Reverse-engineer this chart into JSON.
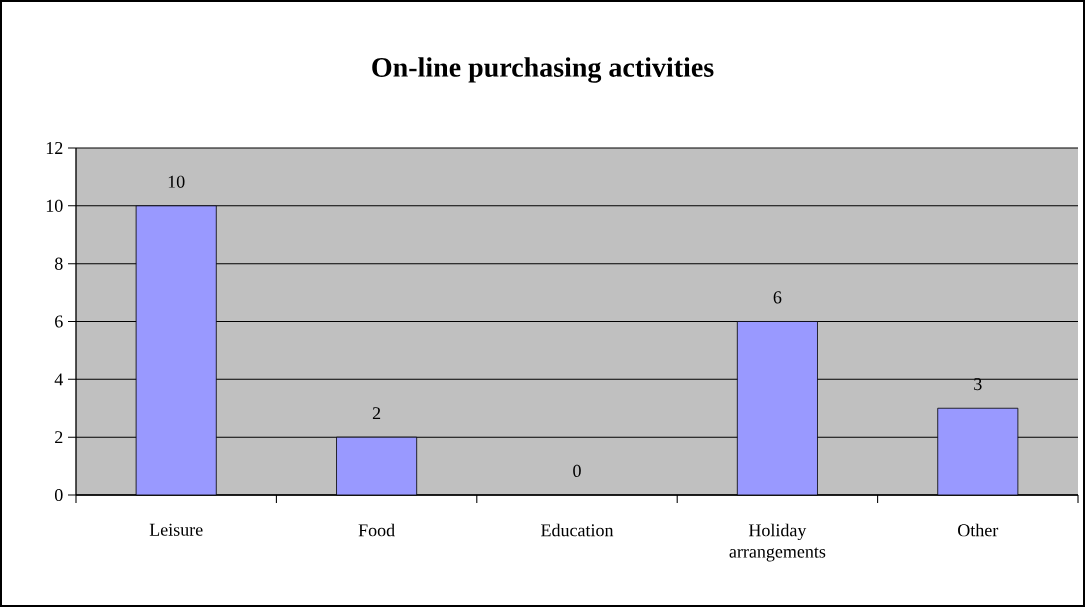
{
  "chart_data": {
    "type": "bar",
    "title": "On-line purchasing activities",
    "categories": [
      "Leisure",
      "Food",
      "Education",
      "Holiday arrangements",
      "Other"
    ],
    "values": [
      10,
      2,
      0,
      6,
      3
    ],
    "color": "#9999ff",
    "ylim": [
      0,
      12
    ],
    "yticks": [
      0,
      2,
      4,
      6,
      8,
      10,
      12
    ],
    "grid": "y",
    "data_labels": true
  }
}
